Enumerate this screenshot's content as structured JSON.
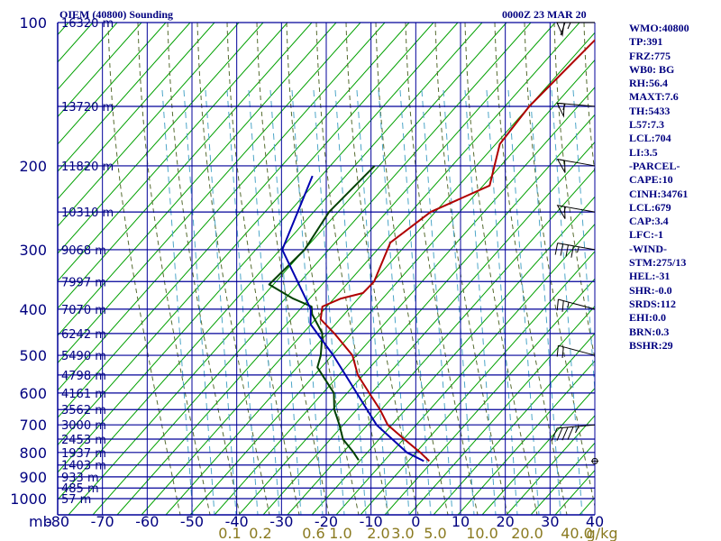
{
  "header": {
    "title": "OIEM (40800) Sounding",
    "time": "0000Z 23 MAR 20"
  },
  "indices": [
    "WMO:40800",
    "TP:391",
    "FRZ:775",
    "WB0: BG",
    "RH:56.4",
    "MAXT:7.6",
    "TH:5433",
    "L57:7.3",
    "LCL:704",
    "LI:3.5",
    "-PARCEL-",
    "CAPE:10",
    "CINH:34761",
    "LCL:679",
    "CAP:3.4",
    "LFC:-1",
    "-WIND-",
    "STM:275/13",
    "HEL:-31",
    "SHR:-0.0",
    "SRDS:112",
    "EHI:0.0",
    "BRN:0.3",
    "BSHR:29"
  ],
  "colors": {
    "grid": "#000099",
    "dry_adiabat": "#00a000",
    "moist_adiabat": "#556b2f",
    "mixing_ratio": "#4da6c8",
    "temperature": "#b00000",
    "dewpoint": "#004000",
    "parcel": "#0000b0",
    "wind_barb": "#000000"
  },
  "chart_data": {
    "type": "line",
    "subtype": "skew-T log-p sounding",
    "pressure_axis": {
      "unit_label": "mb",
      "ticks": [
        100,
        200,
        300,
        400,
        500,
        600,
        700,
        800,
        900,
        1000
      ],
      "scale": "log",
      "range": [
        100,
        1000
      ]
    },
    "temperature_axis": {
      "ticks": [
        -80,
        -70,
        -60,
        -50,
        -40,
        -30,
        -20,
        -10,
        0,
        10,
        20,
        30,
        40
      ],
      "tick_labels": [
        "-80",
        "-70",
        "-60",
        "-50",
        "-40",
        "-30",
        "-20",
        "-10",
        "0",
        "10",
        "20",
        "30",
        "40"
      ],
      "range": [
        -80,
        40
      ],
      "unit": "C"
    },
    "mixing_ratio_labels": [
      "0.1",
      "0.2",
      "0.6",
      "1.0",
      "2.0",
      "3.0",
      "5.0",
      "10.0",
      "20.0",
      "40.0"
    ],
    "mixing_ratio_unit": "g/kg",
    "heights": [
      {
        "p": 100,
        "label": "16320 m"
      },
      {
        "p": 150,
        "label": "13720 m"
      },
      {
        "p": 200,
        "label": "11820 m"
      },
      {
        "p": 250,
        "label": "10310 m"
      },
      {
        "p": 300,
        "label": "9068 m"
      },
      {
        "p": 350,
        "label": "7997 m"
      },
      {
        "p": 400,
        "label": "7070 m"
      },
      {
        "p": 450,
        "label": "6242 m"
      },
      {
        "p": 500,
        "label": "5490 m"
      },
      {
        "p": 550,
        "label": "4798 m"
      },
      {
        "p": 600,
        "label": "4161 m"
      },
      {
        "p": 650,
        "label": "3562 m"
      },
      {
        "p": 700,
        "label": "3000 m"
      },
      {
        "p": 750,
        "label": "2453 m"
      },
      {
        "p": 800,
        "label": "1937 m"
      },
      {
        "p": 850,
        "label": "1403 m"
      },
      {
        "p": 900,
        "label": "933 m"
      },
      {
        "p": 950,
        "label": "485 m"
      },
      {
        "p": 1000,
        "label": "57 m"
      }
    ],
    "series": [
      {
        "name": "Temperature",
        "points": [
          [
            100,
            -60.3
          ],
          [
            150,
            -60.5
          ],
          [
            180,
            -58.8
          ],
          [
            220,
            -52.0
          ],
          [
            250,
            -59.4
          ],
          [
            290,
            -61.7
          ],
          [
            350,
            -56.8
          ],
          [
            370,
            -56.8
          ],
          [
            380,
            -60.5
          ],
          [
            395,
            -62.9
          ],
          [
            420,
            -60.5
          ],
          [
            450,
            -54.3
          ],
          [
            500,
            -45.5
          ],
          [
            550,
            -40.0
          ],
          [
            600,
            -33.5
          ],
          [
            650,
            -27.5
          ],
          [
            700,
            -22.4
          ],
          [
            750,
            -15.6
          ],
          [
            800,
            -9.1
          ],
          [
            834,
            -5.2
          ]
        ]
      },
      {
        "name": "Dewpoint",
        "points": [
          [
            200,
            -82.0
          ],
          [
            250,
            -82.1
          ],
          [
            300,
            -79.3
          ],
          [
            355,
            -79.6
          ],
          [
            380,
            -71.2
          ],
          [
            395,
            -65.3
          ],
          [
            410,
            -63.5
          ],
          [
            450,
            -57.0
          ],
          [
            500,
            -52.6
          ],
          [
            530,
            -50.7
          ],
          [
            600,
            -41.4
          ],
          [
            650,
            -37.7
          ],
          [
            700,
            -33.2
          ],
          [
            750,
            -29.3
          ],
          [
            800,
            -24.0
          ],
          [
            830,
            -21.2
          ]
        ]
      },
      {
        "name": "Parcel",
        "points": [
          [
            210,
            -93.7
          ],
          [
            300,
            -84.3
          ],
          [
            400,
            -64.9
          ],
          [
            430,
            -61.7
          ],
          [
            500,
            -49.8
          ],
          [
            600,
            -36.3
          ],
          [
            700,
            -24.9
          ],
          [
            800,
            -12.1
          ],
          [
            834,
            -6.4
          ]
        ]
      }
    ],
    "wind_barbs": [
      {
        "p": 100,
        "dir": 270,
        "speed_kt": 65
      },
      {
        "p": 150,
        "dir": 275,
        "speed_kt": 55
      },
      {
        "p": 200,
        "dir": 280,
        "speed_kt": 50
      },
      {
        "p": 250,
        "dir": 280,
        "speed_kt": 55
      },
      {
        "p": 300,
        "dir": 280,
        "speed_kt": 45
      },
      {
        "p": 400,
        "dir": 285,
        "speed_kt": 25
      },
      {
        "p": 500,
        "dir": 285,
        "speed_kt": 20
      },
      {
        "p": 700,
        "dir": 265,
        "speed_kt": 45
      },
      {
        "p": 834,
        "dir": 0,
        "speed_kt": 0
      }
    ],
    "grid": true
  }
}
